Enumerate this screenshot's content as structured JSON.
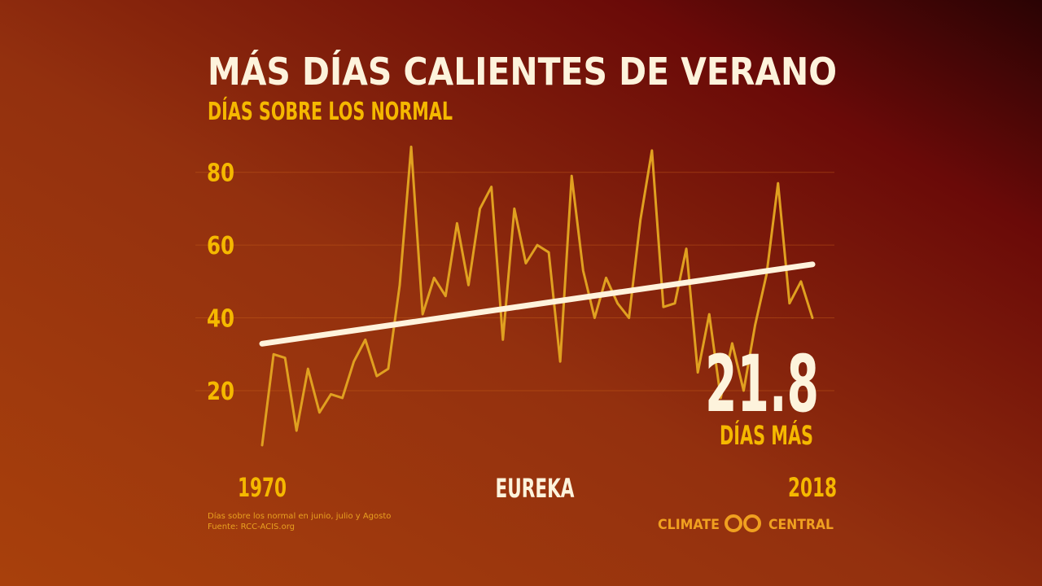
{
  "chart_data": {
    "type": "line",
    "title": "MÁS DÍAS CALIENTES DE VERANO",
    "subtitle": "DÍAS SOBRE LOS NORMAL",
    "location": "EUREKA",
    "x": [
      1970,
      1971,
      1972,
      1973,
      1974,
      1975,
      1976,
      1977,
      1978,
      1979,
      1980,
      1981,
      1982,
      1983,
      1984,
      1985,
      1986,
      1987,
      1988,
      1989,
      1990,
      1991,
      1992,
      1993,
      1994,
      1995,
      1996,
      1997,
      1998,
      1999,
      2000,
      2001,
      2002,
      2003,
      2004,
      2005,
      2006,
      2007,
      2008,
      2009,
      2010,
      2011,
      2012,
      2013,
      2014,
      2015,
      2016,
      2017,
      2018
    ],
    "series": [
      {
        "color": "#e0a020",
        "values": [
          5,
          30,
          29,
          9,
          26,
          14,
          19,
          18,
          28,
          34,
          24,
          26,
          49,
          87,
          41,
          51,
          46,
          66,
          49,
          70,
          76,
          34,
          70,
          55,
          60,
          58,
          28,
          79,
          53,
          40,
          51,
          44,
          40,
          67,
          86,
          43,
          44,
          59,
          25,
          41,
          18,
          33,
          20,
          38,
          52,
          77,
          44,
          50,
          40
        ]
      }
    ],
    "trend": {
      "color": "#fff3dc",
      "x": [
        1970,
        2018
      ],
      "values": [
        32.9,
        54.7
      ]
    },
    "annotation": {
      "value": 21.8,
      "text": "DÍAS MÁS"
    },
    "xlim": [
      1970,
      2018
    ],
    "xticks": [
      1970,
      2018
    ],
    "ylim": [
      0,
      90
    ],
    "yticks": [
      20,
      40,
      60,
      80
    ],
    "grid": true,
    "footnote": [
      "Días sobre los normal en junio, julio y Agosto",
      "Fuente: RCC-ACIS.org"
    ],
    "logo": [
      "CLIMATE",
      "CENTRAL"
    ]
  }
}
